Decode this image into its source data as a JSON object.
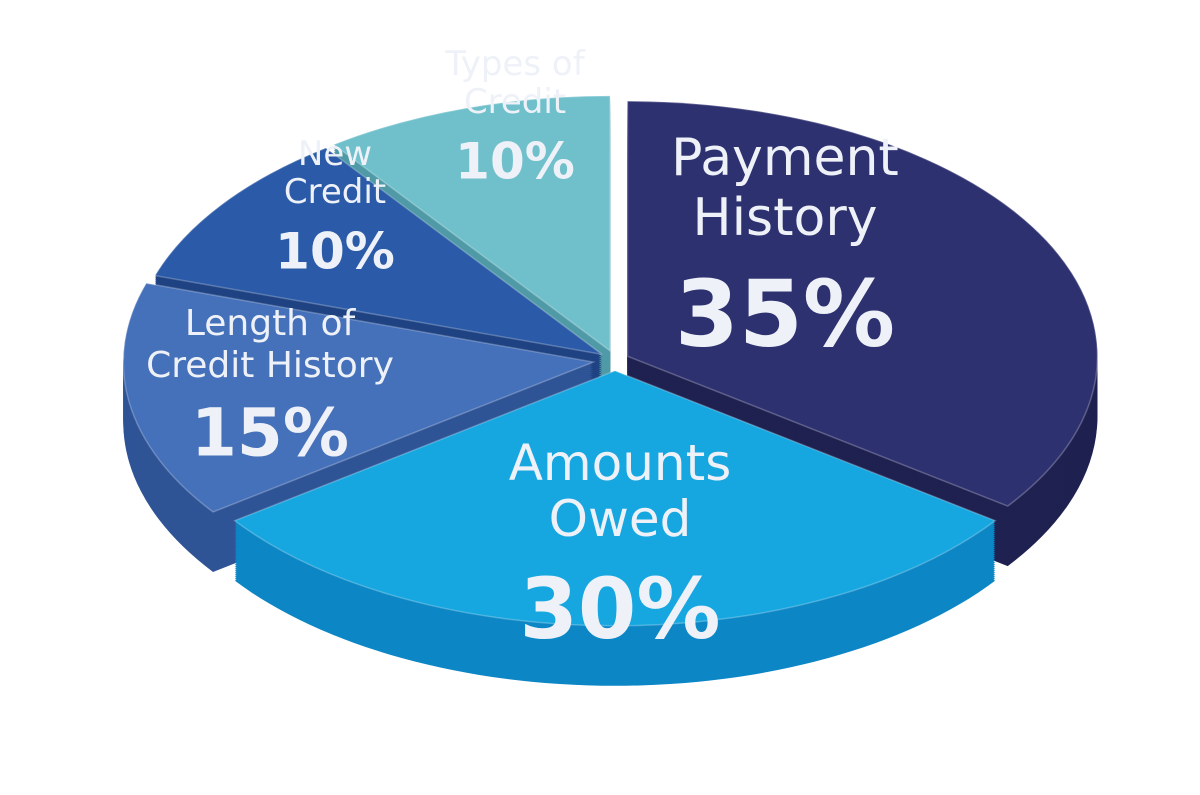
{
  "chart_data": {
    "type": "pie",
    "style": "3d-exploded",
    "unit": "%",
    "slices": [
      {
        "label": "Payment History",
        "line1": "Payment",
        "line2": "History",
        "value": 35,
        "value_label": "35%",
        "color": "#2e3170",
        "side": "#1f2150"
      },
      {
        "label": "Amounts Owed",
        "line1": "Amounts",
        "line2": "Owed",
        "value": 30,
        "value_label": "30%",
        "color": "#16a6e0",
        "side": "#0c86c4"
      },
      {
        "label": "Length of Credit History",
        "line1": "Length of",
        "line2": "Credit History",
        "value": 15,
        "value_label": "15%",
        "color": "#4570ba",
        "side": "#2f5496"
      },
      {
        "label": "New Credit",
        "line1": "New",
        "line2": "Credit",
        "value": 10,
        "value_label": "10%",
        "color": "#2b5aa8",
        "side": "#1e4282"
      },
      {
        "label": "Types of Credit",
        "line1": "Types of",
        "line2": "Credit",
        "value": 10,
        "value_label": "10%",
        "color": "#70c0cc",
        "side": "#4f9aa6"
      }
    ]
  }
}
